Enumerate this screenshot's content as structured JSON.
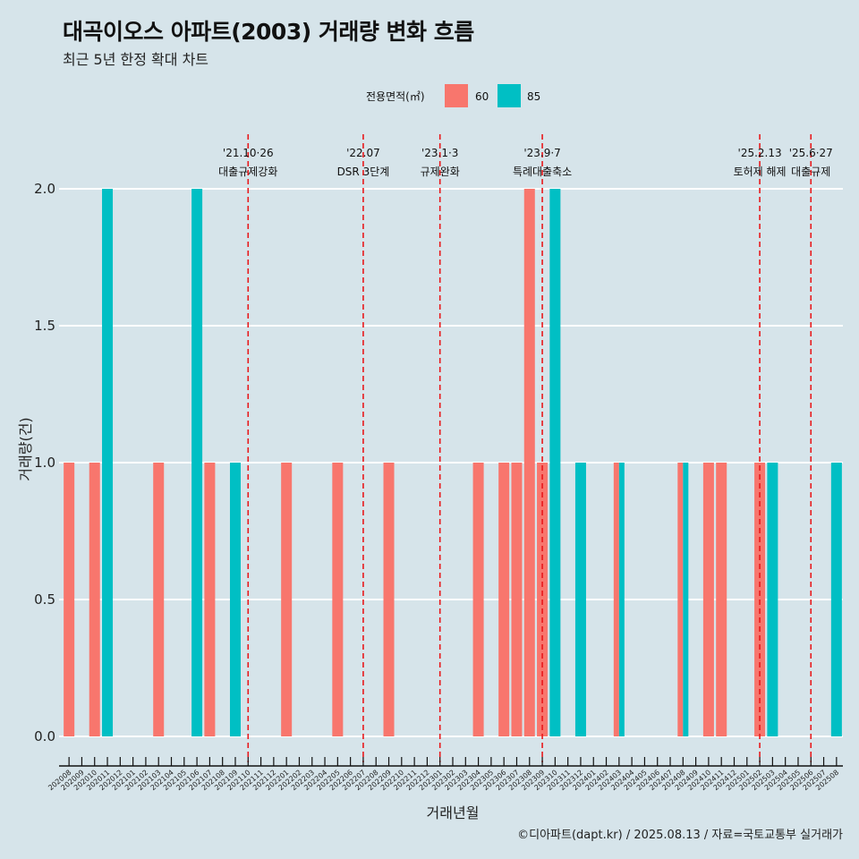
{
  "title": "대곡이오스 아파트(2003) 거래량 변화 흐름",
  "subtitle": "최근 5년 한정 확대 차트",
  "caption": "©디아파트(dapt.kr) / 2025.08.13 / 자료=국토교통부 실거래가",
  "colors": {
    "background": "#d6e4ea",
    "series_60": "#f8766d",
    "series_85": "#00bfc4",
    "grid": "#ffffff",
    "event_line": "#e8191c"
  },
  "chart_data": {
    "type": "bar",
    "title": "대곡이오스 아파트(2003) 거래량 변화 흐름",
    "xlabel": "거래년월",
    "ylabel": "거래량(건)",
    "ylim": [
      0,
      2
    ],
    "yticks": [
      0,
      0.5,
      1,
      1.5,
      2
    ],
    "ytick_labels": [
      "0.0",
      "0.5",
      "1.0",
      "1.5",
      "2.0"
    ],
    "legend": {
      "title": "전용면적(㎡)",
      "position": "top",
      "entries": [
        "60",
        "85"
      ]
    },
    "categories": [
      "202008",
      "202009",
      "202010",
      "202011",
      "202012",
      "202101",
      "202102",
      "202103",
      "202104",
      "202105",
      "202106",
      "202107",
      "202108",
      "202109",
      "202110",
      "202111",
      "202112",
      "202201",
      "202202",
      "202203",
      "202204",
      "202205",
      "202206",
      "202207",
      "202208",
      "202209",
      "202210",
      "202211",
      "202212",
      "202301",
      "202302",
      "202303",
      "202304",
      "202305",
      "202306",
      "202307",
      "202308",
      "202309",
      "202310",
      "202311",
      "202312",
      "202401",
      "202402",
      "202403",
      "202404",
      "202405",
      "202406",
      "202407",
      "202408",
      "202409",
      "202410",
      "202411",
      "202412",
      "202501",
      "202502",
      "202503",
      "202504",
      "202505",
      "202506",
      "202507",
      "202508"
    ],
    "series": [
      {
        "name": "60",
        "values": [
          1,
          0,
          1,
          0,
          0,
          0,
          0,
          1,
          0,
          0,
          0,
          1,
          0,
          0,
          0,
          0,
          0,
          1,
          0,
          0,
          0,
          1,
          0,
          0,
          0,
          1,
          0,
          0,
          0,
          0,
          0,
          0,
          1,
          0,
          1,
          1,
          2,
          1,
          0,
          0,
          0,
          0,
          0,
          1,
          0,
          0,
          0,
          0,
          1,
          0,
          1,
          1,
          0,
          0,
          1,
          0,
          0,
          0,
          0,
          0,
          0
        ]
      },
      {
        "name": "85",
        "values": [
          0,
          0,
          0,
          2,
          0,
          0,
          0,
          0,
          0,
          0,
          2,
          0,
          0,
          1,
          0,
          0,
          0,
          0,
          0,
          0,
          0,
          0,
          0,
          0,
          0,
          0,
          0,
          0,
          0,
          0,
          0,
          0,
          0,
          0,
          0,
          0,
          0,
          0,
          2,
          0,
          1,
          0,
          0,
          1,
          0,
          0,
          0,
          0,
          1,
          0,
          0,
          0,
          0,
          0,
          0,
          1,
          0,
          0,
          0,
          0,
          1
        ]
      }
    ],
    "events": [
      {
        "month": "202110",
        "date": "'21.10·26",
        "label": "대출규제강화"
      },
      {
        "month": "202207",
        "date": "'22.07",
        "label": "DSR 3단계"
      },
      {
        "month": "202301",
        "date": "'23.1·3",
        "label": "규제완화"
      },
      {
        "month": "202309",
        "date": "'23.9·7",
        "label": "특례대출축소"
      },
      {
        "month": "202502",
        "date": "'25.2.13",
        "label": "토허제 해제"
      },
      {
        "month": "202506",
        "date": "'25.6·27",
        "label": "대출규제"
      }
    ]
  }
}
